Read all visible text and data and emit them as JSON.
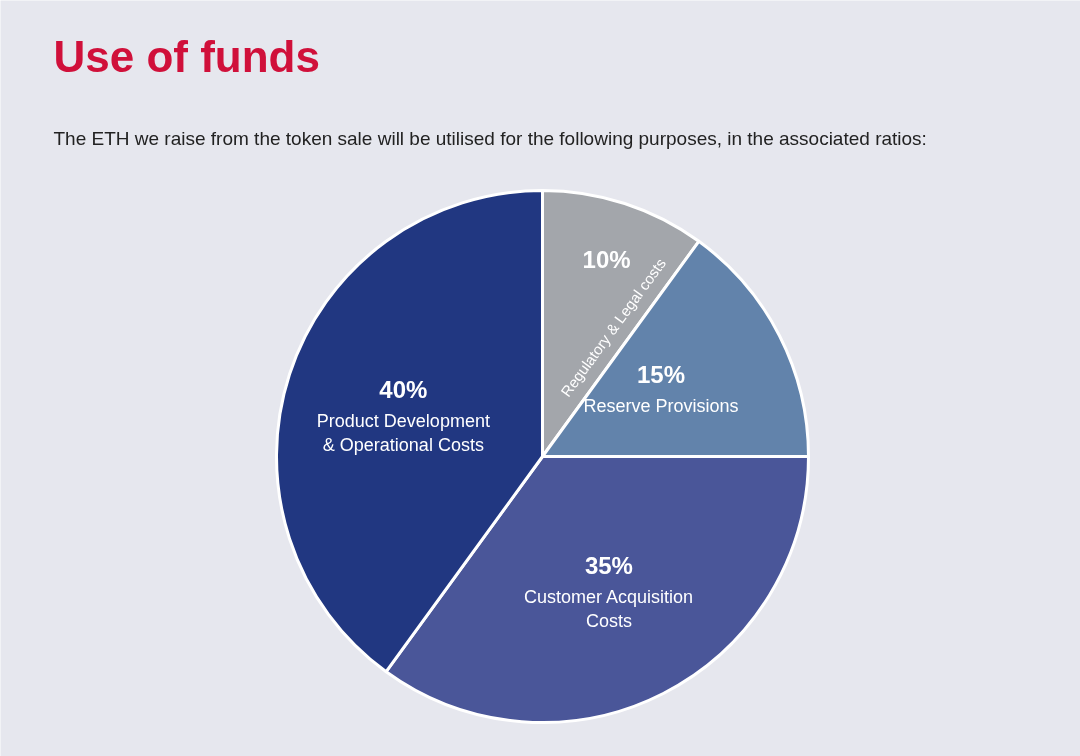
{
  "chart_data": {
    "type": "pie",
    "title": "Use of funds",
    "subtitle": "The ETH we raise from the token sale will be utilised for the following purposes, in the associated ratios:",
    "categories": [
      "Regulatory & Legal costs",
      "Reserve Provisions",
      "Customer Acquisition Costs",
      "Product Development & Operational Costs"
    ],
    "values": [
      10,
      15,
      35,
      40
    ],
    "colors": [
      "#a3a6ab",
      "#6283ab",
      "#4a5699",
      "#213781"
    ],
    "value_labels": [
      "10%",
      "15%",
      "35%",
      "40%"
    ]
  }
}
